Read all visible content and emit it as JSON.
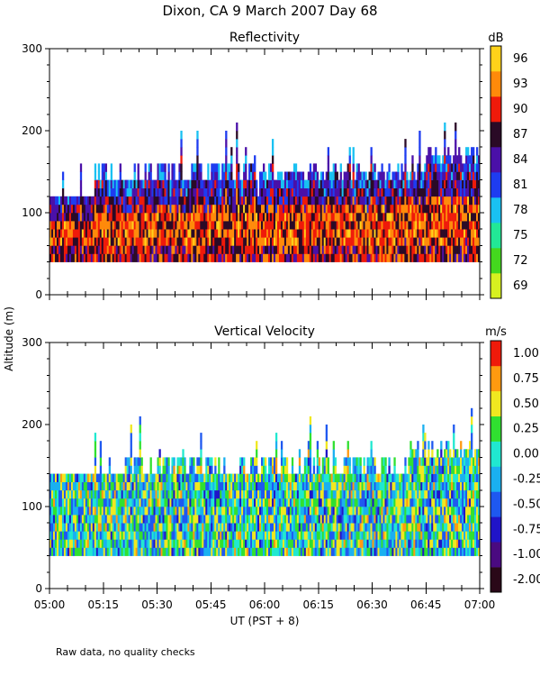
{
  "title": "Dixon, CA  9 March 2007  Day  68",
  "ylabel": "Altitude (m)",
  "xlabel": "UT  (PST + 8)",
  "footnote": "Raw data, no quality checks",
  "chart_data": [
    {
      "type": "heatmap",
      "title": "Reflectivity",
      "units": "dB",
      "x": [
        "05:00",
        "05:15",
        "05:30",
        "05:45",
        "06:00",
        "06:15",
        "06:30",
        "06:45",
        "07:00"
      ],
      "xlim_minutes": [
        0,
        120
      ],
      "yticks": [
        0,
        100,
        200,
        300
      ],
      "ylim": [
        0,
        300
      ],
      "colorbar": {
        "labels": [
          "69",
          "72",
          "75",
          "78",
          "81",
          "84",
          "87",
          "90",
          "93",
          "96"
        ],
        "colors": [
          "#d7f020",
          "#44d81e",
          "#22e896",
          "#19c1f2",
          "#1e3cf0",
          "#4a10a8",
          "#2a0a26",
          "#ef1a0a",
          "#ff8a0a",
          "#ffd21a"
        ]
      },
      "data_range": {
        "min_altitude_m": 40,
        "typical_top_m": 120,
        "max_top_m": 220
      },
      "mean_profile": [
        {
          "altitude_m": 45,
          "dB": 88
        },
        {
          "altitude_m": 70,
          "dB": 90
        },
        {
          "altitude_m": 95,
          "dB": 88
        },
        {
          "altitude_m": 120,
          "dB": 84
        },
        {
          "altitude_m": 150,
          "dB": 80
        }
      ]
    },
    {
      "type": "heatmap",
      "title": "Vertical Velocity",
      "units": "m/s",
      "x": [
        "05:00",
        "05:15",
        "05:30",
        "05:45",
        "06:00",
        "06:15",
        "06:30",
        "06:45",
        "07:00"
      ],
      "xlim_minutes": [
        0,
        120
      ],
      "yticks": [
        0,
        100,
        200,
        300
      ],
      "ylim": [
        0,
        300
      ],
      "colorbar": {
        "labels": [
          "-2.00",
          "-1.00",
          "-0.75",
          "-0.50",
          "-0.25",
          "0.00",
          "0.25",
          "0.50",
          "0.75",
          "1.00"
        ],
        "colors": [
          "#2a0818",
          "#4a0a80",
          "#2014c8",
          "#1e58f0",
          "#1ab0f0",
          "#20e8d0",
          "#30e030",
          "#f0e820",
          "#ff9a10",
          "#ef1a0a"
        ]
      },
      "data_range": {
        "min_altitude_m": 40,
        "typical_top_m": 140,
        "max_top_m": 220
      },
      "mean_profile": [
        {
          "altitude_m": 45,
          "m_s": -0.25
        },
        {
          "altitude_m": 90,
          "m_s": 0.0
        },
        {
          "altitude_m": 140,
          "m_s": 0.0
        }
      ]
    }
  ]
}
